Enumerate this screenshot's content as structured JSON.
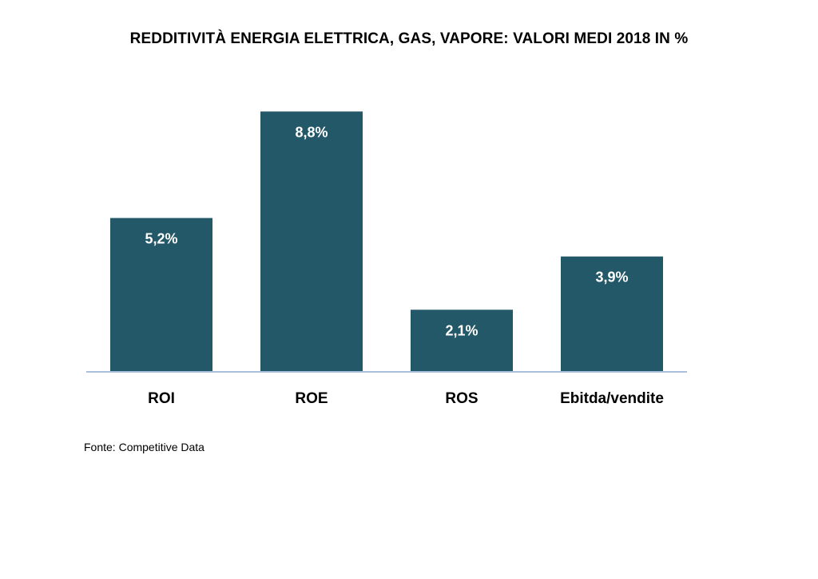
{
  "chart_data": {
    "type": "bar",
    "title": "REDDITIVITÀ ENERGIA ELETTRICA, GAS, VAPORE: VALORI MEDI 2018 IN %",
    "xlabel": "",
    "ylabel": "",
    "categories": [
      "ROI",
      "ROE",
      "ROS",
      "Ebitda/vendite"
    ],
    "values": [
      5.2,
      8.8,
      2.1,
      3.9
    ],
    "data_labels": [
      "5,2%",
      "8,8%",
      "2,1%",
      "3,9%"
    ],
    "ylim": [
      0,
      10
    ],
    "grid": false,
    "legend": "none"
  },
  "colors": {
    "bar": "#235868",
    "axis": "#a9bfdc",
    "label_text": "#ffffff"
  },
  "source": "Fonte: Competitive Data"
}
